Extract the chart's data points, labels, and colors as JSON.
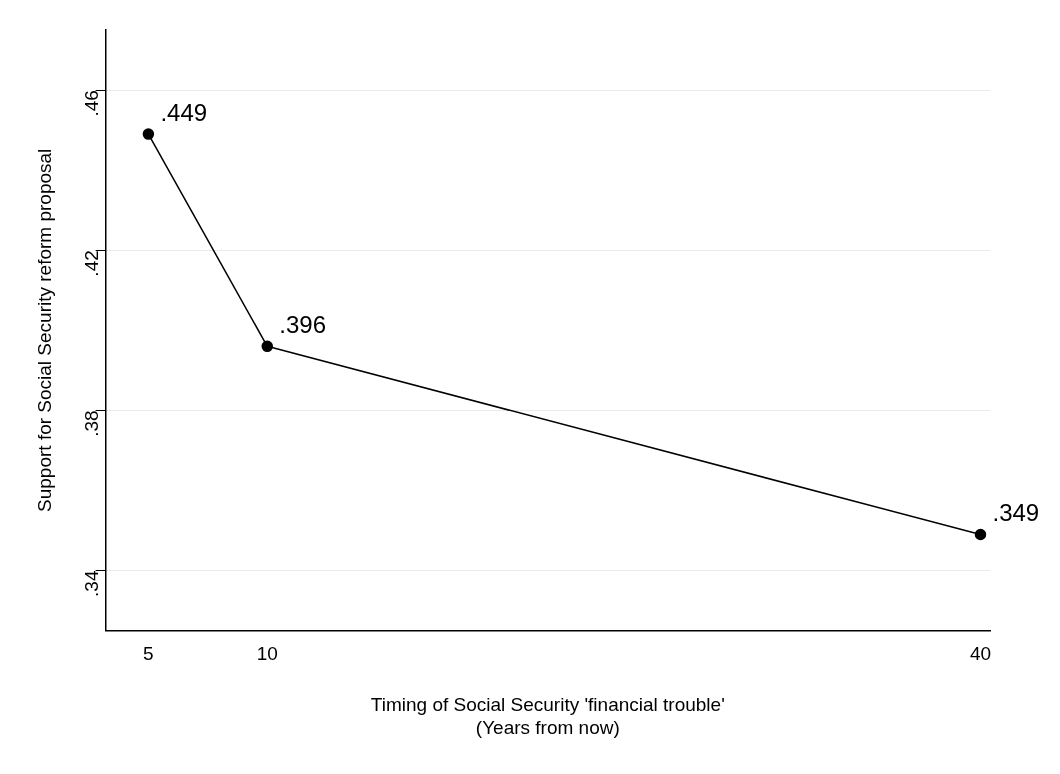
{
  "chart_data": {
    "type": "line",
    "x": [
      5,
      10,
      40
    ],
    "series": [
      {
        "color": "#000000",
        "values": [
          0.449,
          0.396,
          0.349
        ],
        "value_labels": [
          ".449",
          ".396",
          ".349"
        ]
      }
    ],
    "xlim": [
      3.2,
      40.4
    ],
    "xticks": [
      5,
      10,
      40
    ],
    "ylim": [
      0.325,
      0.475
    ],
    "yticks": [
      {
        "value": 0.34,
        "label": ".34"
      },
      {
        "value": 0.38,
        "label": ".38"
      },
      {
        "value": 0.42,
        "label": ".42"
      },
      {
        "value": 0.46,
        "label": ".46"
      }
    ],
    "xlabel": "Timing of Social Security 'financial trouble'\n(Years from now)",
    "ylabel": "Support for Social Security reform proposal",
    "grid": "y",
    "legend": false,
    "marker": "circle",
    "line_style": "solid"
  }
}
